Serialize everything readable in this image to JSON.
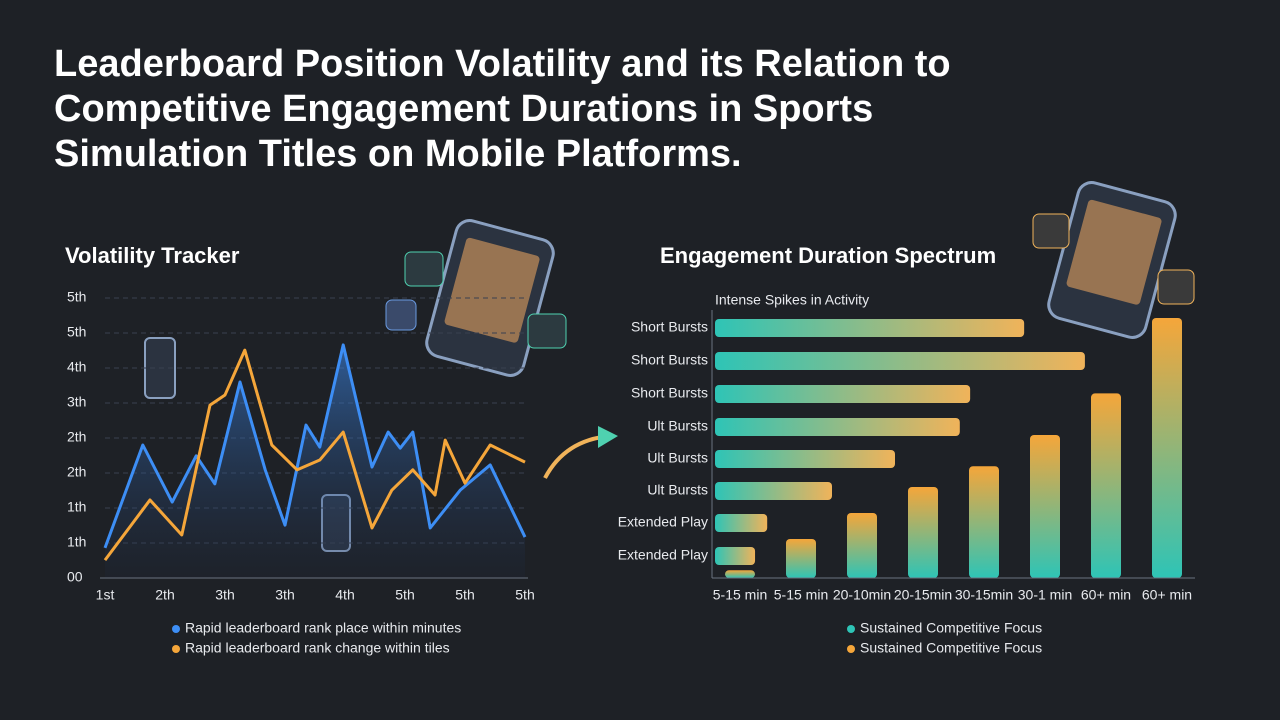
{
  "title": "Leaderboard Position Volatility and its Relation to Competitive Engagement Durations in Sports Simulation Titles on Mobile Platforms.",
  "chart_data": [
    {
      "type": "line",
      "title": "Volatility Tracker",
      "xlim": [
        0,
        7
      ],
      "xticks": [
        {
          "value": 0,
          "label": "1st"
        },
        {
          "value": 1,
          "label": "2th"
        },
        {
          "value": 2,
          "label": "3th"
        },
        {
          "value": 3,
          "label": "3th"
        },
        {
          "value": 4,
          "label": "4th"
        },
        {
          "value": 5,
          "label": "5th"
        },
        {
          "value": 6,
          "label": "5th"
        },
        {
          "value": 7,
          "label": "5th"
        }
      ],
      "ylim": [
        0,
        8
      ],
      "yticks": [
        {
          "value": 0,
          "label": "00"
        },
        {
          "value": 1,
          "label": "1th"
        },
        {
          "value": 2,
          "label": "1th"
        },
        {
          "value": 3,
          "label": "2th"
        },
        {
          "value": 4,
          "label": "2th"
        },
        {
          "value": 5,
          "label": "3th"
        },
        {
          "value": 6,
          "label": "4th"
        },
        {
          "value": 7,
          "label": "5th"
        },
        {
          "value": 8,
          "label": "5th"
        }
      ],
      "grid": true,
      "series": [
        {
          "name": "Rapid leaderboard rank place within minutes",
          "color": "#3d8ef5",
          "x": [
            0,
            0.63,
            1.12,
            1.52,
            1.83,
            2.25,
            2.67,
            3.0,
            3.35,
            3.58,
            3.97,
            4.45,
            4.72,
            4.92,
            5.13,
            5.42,
            5.92,
            6.42,
            7.0
          ],
          "values": [
            0.86,
            3.8,
            2.17,
            3.49,
            2.69,
            5.6,
            3.09,
            1.51,
            4.37,
            3.74,
            6.66,
            3.17,
            4.17,
            3.71,
            4.17,
            1.43,
            2.51,
            3.23,
            1.17
          ]
        },
        {
          "name": "Rapid leaderboard rank change within tiles",
          "color": "#f5a63a",
          "x": [
            0,
            0.75,
            1.28,
            1.75,
            2.0,
            2.33,
            2.78,
            3.2,
            3.58,
            3.97,
            4.45,
            4.78,
            5.13,
            5.5,
            5.67,
            6.0,
            6.42,
            7.0
          ],
          "values": [
            0.51,
            2.23,
            1.23,
            4.94,
            5.23,
            6.51,
            3.8,
            3.09,
            3.37,
            4.17,
            1.43,
            2.51,
            3.09,
            2.37,
            3.94,
            2.71,
            3.8,
            3.31
          ]
        }
      ]
    },
    {
      "type": "hbar",
      "title": "Engagement Duration Spectrum",
      "annotation": "Intense Spikes in Activity",
      "xlim": [
        0,
        100
      ],
      "categories": [
        "Short Bursts",
        "Short Bursts",
        "Short Bursts",
        "Ult Bursts",
        "Ult Bursts",
        "Ult Bursts",
        "Extended Play",
        "Extended Play"
      ],
      "values": [
        68.7,
        82.2,
        56.7,
        54.4,
        40,
        26,
        11.6,
        8.9
      ]
    },
    {
      "type": "vbar",
      "ylim": [
        0,
        100
      ],
      "categories": [
        "5-15 min",
        "5-15 min",
        "20-10min",
        "20-15min",
        "30-15min",
        "30-1 min",
        "60+ min",
        "60+ min"
      ],
      "values": [
        3,
        15,
        25,
        35,
        43,
        55,
        71,
        100
      ],
      "legend": [
        {
          "label": "Sustained Competitive Focus",
          "color": "#2ec4b6"
        },
        {
          "label": "Sustained Competitive Focus",
          "color": "#f5a63a"
        }
      ]
    }
  ]
}
